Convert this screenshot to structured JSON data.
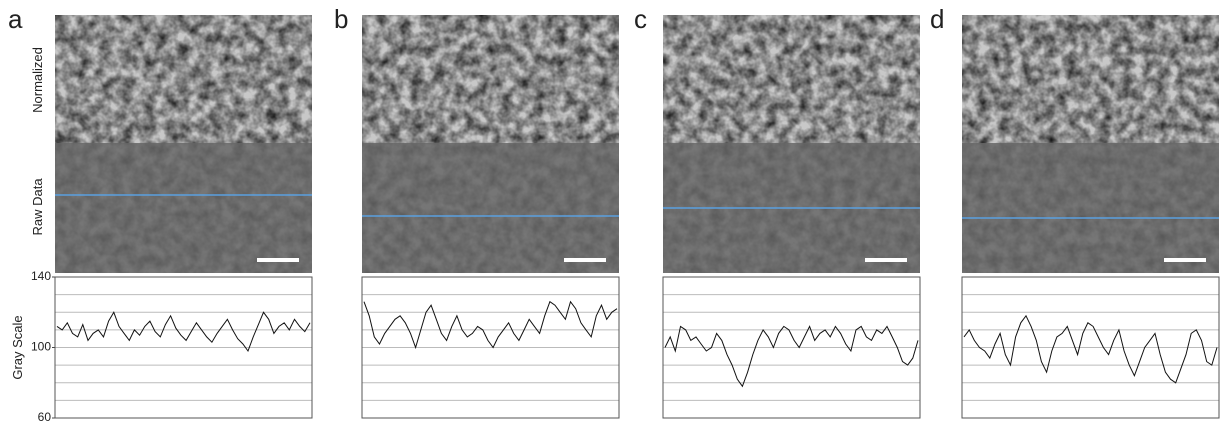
{
  "row_labels": {
    "normalized": "Normalized",
    "raw": "Raw Data"
  },
  "chart_data": [
    {
      "type": "line",
      "panel": "a",
      "ylabel": "Gray Scale",
      "ylim": [
        60,
        140
      ],
      "yticks": [
        60,
        100,
        140
      ],
      "ygrid": [
        70,
        80,
        90,
        100,
        110,
        120,
        130
      ],
      "color": "#111111",
      "values": [
        112,
        110,
        114,
        108,
        106,
        113,
        104,
        108,
        110,
        106,
        115,
        120,
        112,
        108,
        104,
        110,
        107,
        112,
        115,
        109,
        106,
        113,
        118,
        111,
        107,
        104,
        109,
        114,
        110,
        106,
        103,
        108,
        112,
        116,
        110,
        105,
        102,
        98,
        106,
        113,
        120,
        116,
        108,
        112,
        114,
        110,
        116,
        112,
        109,
        114
      ]
    },
    {
      "type": "line",
      "panel": "b",
      "ylim": [
        60,
        140
      ],
      "ygrid": [
        70,
        80,
        90,
        100,
        110,
        120,
        130
      ],
      "color": "#111111",
      "values": [
        126,
        118,
        106,
        102,
        108,
        112,
        116,
        118,
        114,
        108,
        100,
        110,
        120,
        124,
        116,
        108,
        104,
        112,
        118,
        110,
        106,
        108,
        112,
        110,
        104,
        100,
        106,
        110,
        114,
        108,
        104,
        110,
        116,
        112,
        108,
        118,
        126,
        124,
        120,
        116,
        126,
        122,
        114,
        110,
        106,
        118,
        124,
        116,
        120,
        122
      ]
    },
    {
      "type": "line",
      "panel": "c",
      "ylim": [
        60,
        140
      ],
      "ygrid": [
        70,
        80,
        90,
        100,
        110,
        120,
        130
      ],
      "color": "#111111",
      "values": [
        100,
        106,
        98,
        112,
        110,
        104,
        106,
        102,
        98,
        100,
        108,
        104,
        96,
        90,
        82,
        78,
        86,
        96,
        104,
        110,
        106,
        100,
        108,
        112,
        110,
        104,
        100,
        106,
        112,
        104,
        108,
        110,
        106,
        112,
        108,
        102,
        98,
        110,
        112,
        106,
        104,
        110,
        108,
        112,
        106,
        100,
        92,
        90,
        94,
        104
      ]
    },
    {
      "type": "line",
      "panel": "d",
      "ylim": [
        60,
        140
      ],
      "ygrid": [
        70,
        80,
        90,
        100,
        110,
        120,
        130
      ],
      "color": "#111111",
      "values": [
        106,
        110,
        104,
        100,
        98,
        94,
        102,
        108,
        96,
        90,
        106,
        114,
        118,
        112,
        104,
        92,
        86,
        98,
        106,
        108,
        112,
        104,
        96,
        108,
        114,
        112,
        106,
        100,
        96,
        104,
        110,
        98,
        90,
        84,
        92,
        100,
        104,
        108,
        96,
        86,
        82,
        80,
        88,
        96,
        108,
        110,
        104,
        92,
        90,
        100
      ]
    }
  ]
}
